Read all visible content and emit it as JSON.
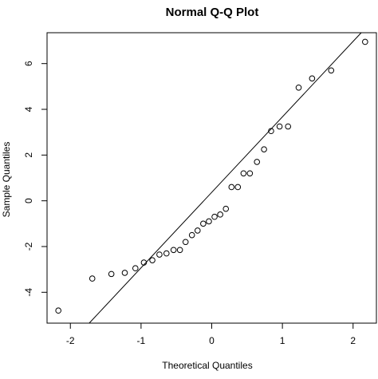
{
  "chart_data": {
    "type": "scatter",
    "title": "Normal Q-Q Plot",
    "xlabel": "Theoretical Quantiles",
    "ylabel": "Sample Quantiles",
    "xlim": [
      -2.33,
      2.33
    ],
    "ylim": [
      -5.35,
      7.35
    ],
    "xticks": [
      -2,
      -1,
      0,
      1,
      2
    ],
    "xtick_labels": [
      "-2",
      "-1",
      "0",
      "1",
      "2"
    ],
    "yticks": [
      -4,
      -2,
      0,
      2,
      4,
      6
    ],
    "ytick_labels": [
      "-4",
      "-2",
      "0",
      "2",
      "4",
      "6"
    ],
    "grid": false,
    "reference_line": {
      "intercept": 0.37,
      "slope": 3.3
    },
    "points": [
      {
        "x": -2.17,
        "y": -4.8
      },
      {
        "x": -1.69,
        "y": -3.4
      },
      {
        "x": -1.42,
        "y": -3.2
      },
      {
        "x": -1.23,
        "y": -3.15
      },
      {
        "x": -1.08,
        "y": -2.95
      },
      {
        "x": -0.96,
        "y": -2.7
      },
      {
        "x": -0.84,
        "y": -2.6
      },
      {
        "x": -0.74,
        "y": -2.35
      },
      {
        "x": -0.64,
        "y": -2.3
      },
      {
        "x": -0.54,
        "y": -2.15
      },
      {
        "x": -0.45,
        "y": -2.15
      },
      {
        "x": -0.37,
        "y": -1.8
      },
      {
        "x": -0.28,
        "y": -1.5
      },
      {
        "x": -0.2,
        "y": -1.3
      },
      {
        "x": -0.12,
        "y": -1.0
      },
      {
        "x": -0.04,
        "y": -0.9
      },
      {
        "x": 0.04,
        "y": -0.7
      },
      {
        "x": 0.12,
        "y": -0.6
      },
      {
        "x": 0.2,
        "y": -0.35
      },
      {
        "x": 0.28,
        "y": 0.6
      },
      {
        "x": 0.37,
        "y": 0.6
      },
      {
        "x": 0.45,
        "y": 1.2
      },
      {
        "x": 0.54,
        "y": 1.2
      },
      {
        "x": 0.64,
        "y": 1.7
      },
      {
        "x": 0.74,
        "y": 2.25
      },
      {
        "x": 0.84,
        "y": 3.05
      },
      {
        "x": 0.96,
        "y": 3.25
      },
      {
        "x": 1.08,
        "y": 3.25
      },
      {
        "x": 1.23,
        "y": 4.95
      },
      {
        "x": 1.42,
        "y": 5.35
      },
      {
        "x": 1.69,
        "y": 5.7
      },
      {
        "x": 2.17,
        "y": 6.95
      }
    ]
  }
}
